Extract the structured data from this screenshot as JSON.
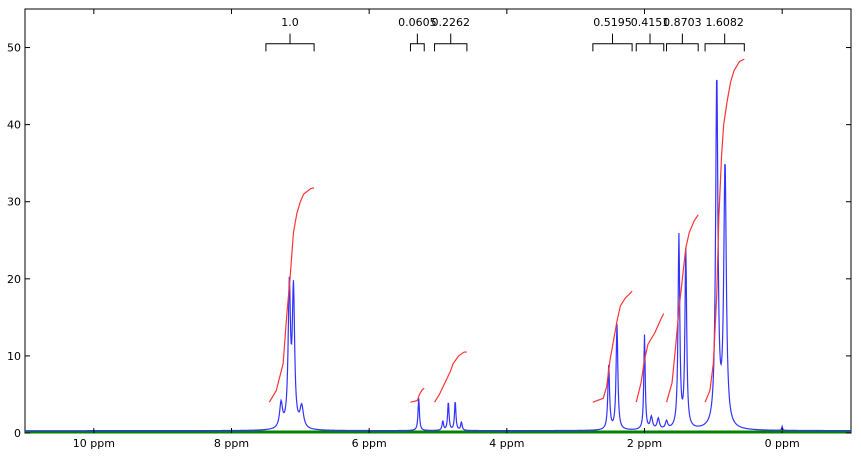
{
  "chart_data": {
    "type": "line",
    "title": "",
    "xlabel": "",
    "ylabel": "",
    "x_reversed": true,
    "xlim": [
      11.0,
      -1.0
    ],
    "ylim": [
      0,
      55
    ],
    "grid": false,
    "colors": {
      "spectrum": "#3333ff",
      "integral": "#ff3333",
      "baseline": "#008000",
      "axes": "#000000",
      "bracket": "#000000"
    },
    "x_ticks": [
      {
        "value": 10,
        "label": "10 ppm"
      },
      {
        "value": 8,
        "label": "8 ppm"
      },
      {
        "value": 6,
        "label": "6 ppm"
      },
      {
        "value": 4,
        "label": "4 ppm"
      },
      {
        "value": 2,
        "label": "2 ppm"
      },
      {
        "value": 0,
        "label": "0 ppm"
      }
    ],
    "y_ticks": [
      {
        "value": 0,
        "label": "0"
      },
      {
        "value": 10,
        "label": "10"
      },
      {
        "value": 20,
        "label": "20"
      },
      {
        "value": 30,
        "label": "30"
      },
      {
        "value": 40,
        "label": "40"
      },
      {
        "value": 50,
        "label": "50"
      }
    ],
    "integrals": [
      {
        "label": "1.0",
        "from": 7.5,
        "to": 6.8,
        "curve": [
          [
            7.45,
            4.0
          ],
          [
            7.35,
            5.5
          ],
          [
            7.25,
            9.0
          ],
          [
            7.2,
            15.0
          ],
          [
            7.15,
            20.0
          ],
          [
            7.1,
            26.0
          ],
          [
            7.05,
            28.5
          ],
          [
            7.0,
            30.0
          ],
          [
            6.95,
            31.0
          ],
          [
            6.85,
            31.7
          ],
          [
            6.8,
            31.8
          ]
        ]
      },
      {
        "label": "0.0605",
        "from": 5.4,
        "to": 5.2,
        "curve": [
          [
            5.4,
            4.0
          ],
          [
            5.3,
            4.2
          ],
          [
            5.27,
            5.0
          ],
          [
            5.23,
            5.6
          ],
          [
            5.2,
            5.8
          ]
        ]
      },
      {
        "label": "0.2262",
        "from": 5.05,
        "to": 4.58,
        "curve": [
          [
            5.05,
            4.0
          ],
          [
            4.98,
            5.0
          ],
          [
            4.9,
            6.5
          ],
          [
            4.82,
            8.0
          ],
          [
            4.78,
            9.0
          ],
          [
            4.7,
            10.0
          ],
          [
            4.62,
            10.5
          ],
          [
            4.58,
            10.5
          ]
        ]
      },
      {
        "label": "0.5195",
        "from": 2.75,
        "to": 2.18,
        "curve": [
          [
            2.75,
            4.0
          ],
          [
            2.6,
            4.5
          ],
          [
            2.55,
            6.0
          ],
          [
            2.5,
            9.5
          ],
          [
            2.45,
            12.0
          ],
          [
            2.4,
            14.5
          ],
          [
            2.35,
            16.5
          ],
          [
            2.28,
            17.5
          ],
          [
            2.2,
            18.2
          ],
          [
            2.18,
            18.4
          ]
        ]
      },
      {
        "label": "0.4151",
        "from": 2.12,
        "to": 1.72,
        "curve": [
          [
            2.12,
            4.0
          ],
          [
            2.05,
            6.5
          ],
          [
            2.0,
            9.5
          ],
          [
            1.95,
            11.5
          ],
          [
            1.85,
            13.0
          ],
          [
            1.75,
            15.0
          ],
          [
            1.72,
            15.5
          ]
        ]
      },
      {
        "label": "0.8703",
        "from": 1.68,
        "to": 1.22,
        "curve": [
          [
            1.68,
            4.0
          ],
          [
            1.6,
            6.5
          ],
          [
            1.55,
            11.0
          ],
          [
            1.5,
            16.0
          ],
          [
            1.45,
            20.0
          ],
          [
            1.4,
            24.0
          ],
          [
            1.35,
            26.0
          ],
          [
            1.28,
            27.5
          ],
          [
            1.22,
            28.3
          ]
        ]
      },
      {
        "label": "1.6082",
        "from": 1.12,
        "to": 0.55,
        "curve": [
          [
            1.12,
            4.0
          ],
          [
            1.05,
            5.5
          ],
          [
            1.0,
            9.0
          ],
          [
            0.95,
            18.0
          ],
          [
            0.92,
            28.0
          ],
          [
            0.88,
            36.0
          ],
          [
            0.85,
            40.0
          ],
          [
            0.8,
            43.0
          ],
          [
            0.75,
            45.5
          ],
          [
            0.7,
            47.0
          ],
          [
            0.62,
            48.2
          ],
          [
            0.55,
            48.5
          ]
        ]
      }
    ],
    "peaks": [
      {
        "x": 7.28,
        "h": 3.2,
        "w": 0.025
      },
      {
        "x": 7.16,
        "h": 18.0,
        "w": 0.02
      },
      {
        "x": 7.1,
        "h": 17.5,
        "w": 0.02
      },
      {
        "x": 6.98,
        "h": 2.8,
        "w": 0.03
      },
      {
        "x": 5.28,
        "h": 4.2,
        "w": 0.012
      },
      {
        "x": 4.93,
        "h": 1.2,
        "w": 0.012
      },
      {
        "x": 4.85,
        "h": 3.7,
        "w": 0.012
      },
      {
        "x": 4.75,
        "h": 3.8,
        "w": 0.012
      },
      {
        "x": 4.66,
        "h": 1.1,
        "w": 0.012
      },
      {
        "x": 2.52,
        "h": 8.3,
        "w": 0.015
      },
      {
        "x": 2.4,
        "h": 13.7,
        "w": 0.015
      },
      {
        "x": 2.0,
        "h": 12.3,
        "w": 0.012
      },
      {
        "x": 1.9,
        "h": 1.6,
        "w": 0.02
      },
      {
        "x": 1.8,
        "h": 1.4,
        "w": 0.02
      },
      {
        "x": 1.68,
        "h": 1.0,
        "w": 0.02
      },
      {
        "x": 1.5,
        "h": 25.0,
        "w": 0.015
      },
      {
        "x": 1.4,
        "h": 23.0,
        "w": 0.015
      },
      {
        "x": 0.95,
        "h": 45.5,
        "w": 0.02
      },
      {
        "x": 0.83,
        "h": 34.0,
        "w": 0.022
      },
      {
        "x": 0.0,
        "h": 0.5,
        "w": 0.008
      }
    ]
  }
}
